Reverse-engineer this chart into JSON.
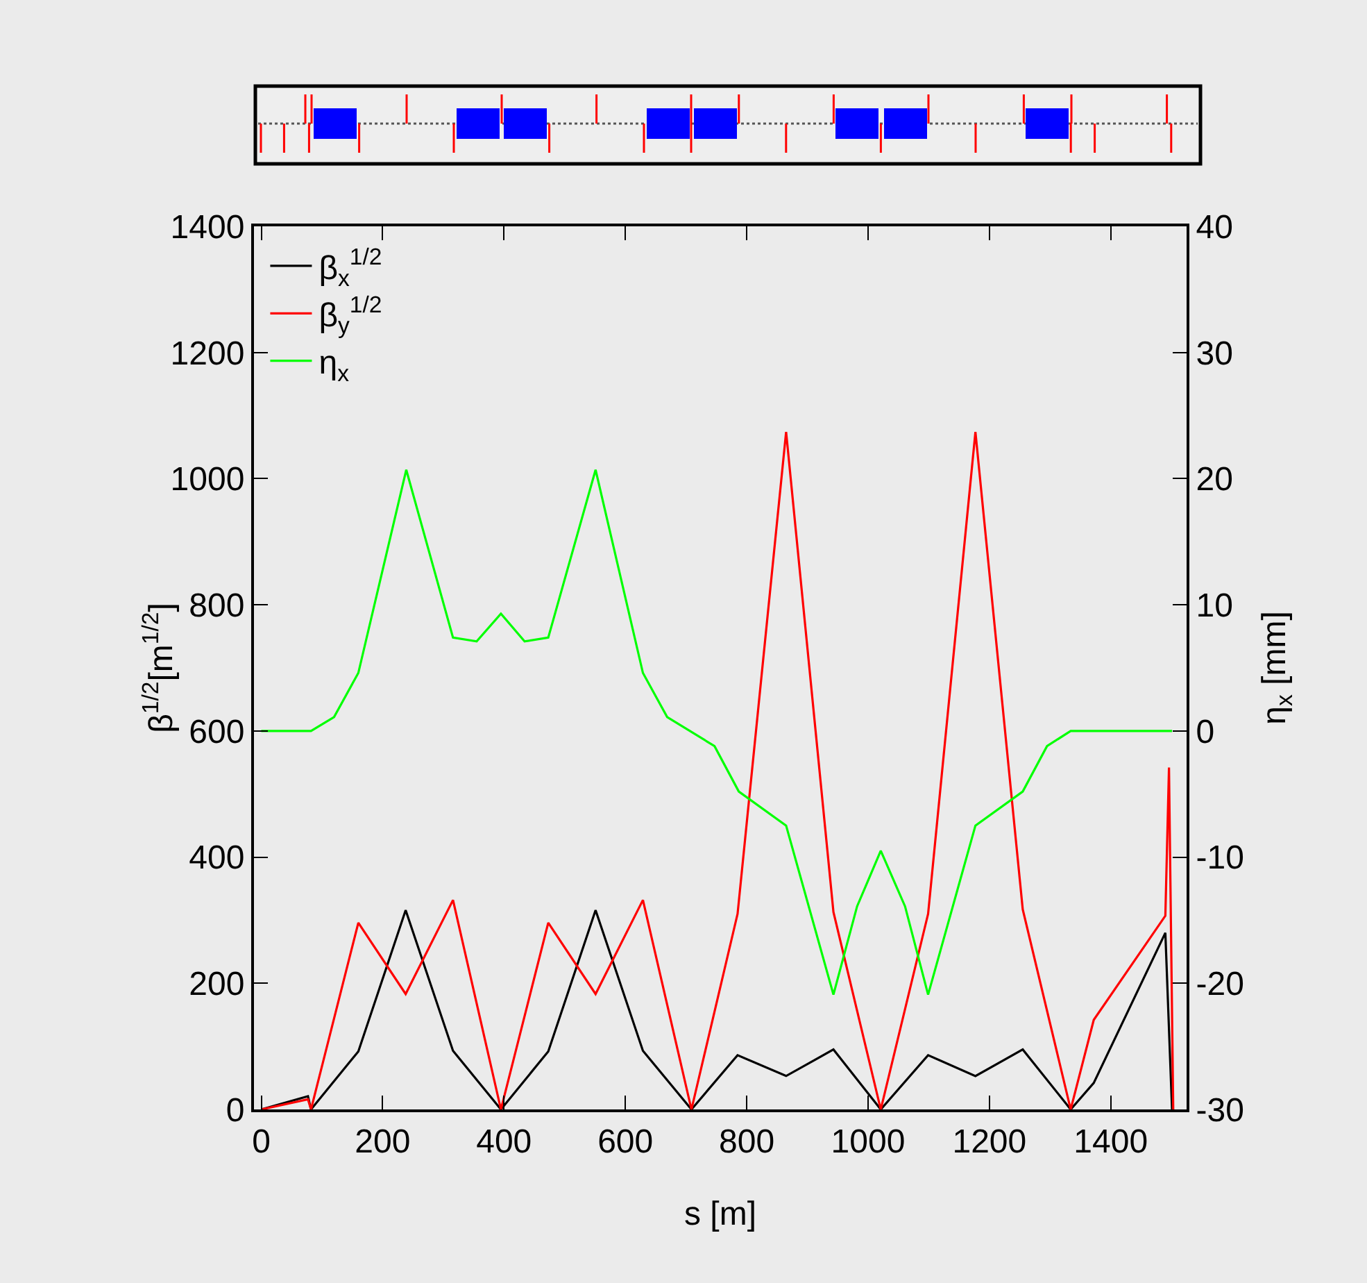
{
  "chart_data": {
    "type": "line",
    "xlabel": "s [m]",
    "ylabel": "β$^{1/2}$[m$^{1/2}$]",
    "y2label": "η$_{x}$ [mm]",
    "xlim": [
      -12,
      1525
    ],
    "xticks": [
      0,
      200,
      400,
      600,
      800,
      1000,
      1200,
      1400
    ],
    "ylim": [
      0,
      1400
    ],
    "yticks": [
      0,
      200,
      400,
      600,
      800,
      1000,
      1200,
      1400
    ],
    "y2lim": [
      -30,
      40
    ],
    "y2ticks": [
      -30,
      -20,
      -10,
      0,
      10,
      20,
      30,
      40
    ],
    "grid": false,
    "legend": "top left",
    "series": [
      {
        "name": "β$_{x}$$^{1/2}$",
        "color": "#000000",
        "x": [
          0,
          77,
          82,
          160,
          238,
          316,
          395,
          473,
          551,
          629,
          709,
          785,
          865,
          943,
          1021,
          1099,
          1177,
          1255,
          1334,
          1372,
          1490,
          1501
        ],
        "values": [
          0,
          21,
          0,
          92,
          316,
          93,
          0,
          92,
          316,
          93,
          0,
          86,
          53,
          95,
          0,
          86,
          53,
          95,
          0,
          42,
          280,
          0
        ]
      },
      {
        "name": "β$_{y}$$^{1/2}$",
        "color": "#ff0000",
        "x": [
          0,
          77,
          82,
          160,
          238,
          316,
          395,
          473,
          551,
          629,
          709,
          785,
          865,
          943,
          1021,
          1099,
          1177,
          1255,
          1334,
          1372,
          1490,
          1496,
          1503
        ],
        "values": [
          0,
          16,
          0,
          296,
          183,
          332,
          0,
          296,
          183,
          332,
          0,
          310,
          1074,
          313,
          0,
          310,
          1074,
          317,
          0,
          142,
          307,
          542,
          0
        ]
      },
      {
        "name": "η$_{x}$",
        "color": "#00ff00",
        "axis": "y2",
        "x": [
          0,
          82,
          120,
          160,
          239,
          316,
          355,
          395,
          434,
          473,
          551,
          629,
          669,
          747,
          787,
          865,
          943,
          982,
          1021,
          1061,
          1099,
          1177,
          1255,
          1295,
          1334,
          1501
        ],
        "values": [
          0,
          0,
          1.1,
          4.6,
          20.7,
          7.4,
          7.1,
          9.3,
          7.1,
          7.4,
          20.7,
          4.6,
          1.1,
          -1.2,
          -4.8,
          -7.5,
          -20.9,
          -13.9,
          -9.5,
          -13.9,
          -20.9,
          -7.5,
          -4.8,
          -1.2,
          0,
          0
        ]
      }
    ]
  }
}
